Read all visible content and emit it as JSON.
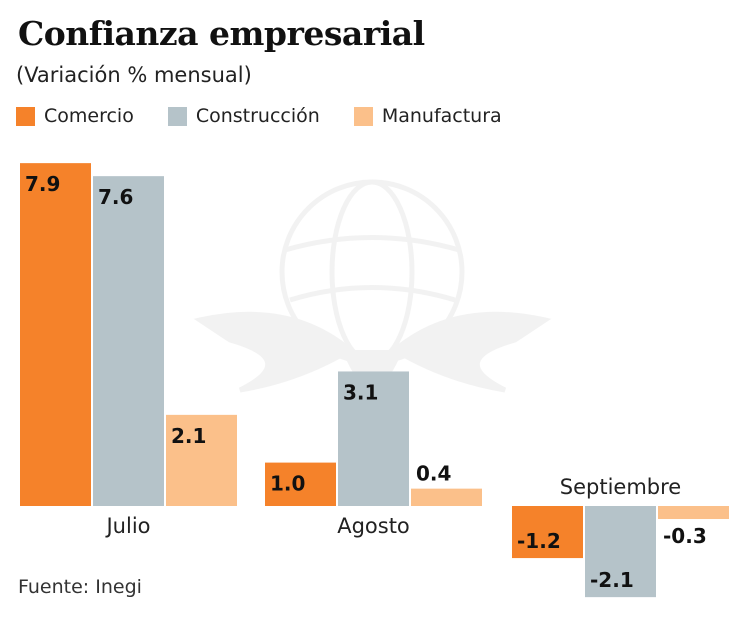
{
  "header": {
    "title": "Confianza empresarial",
    "subtitle": "(Variación % mensual)"
  },
  "footer": {
    "source": "Fuente: Inegi"
  },
  "colors": {
    "comercio": "#F5822A",
    "construccion": "#B5C3C9",
    "manufactura": "#FBC08A"
  },
  "chart_data": {
    "type": "bar",
    "title": "Confianza empresarial",
    "subtitle": "(Variación % mensual)",
    "xlabel": "",
    "ylabel": "",
    "categories": [
      "Julio",
      "Agosto",
      "Septiembre"
    ],
    "series": [
      {
        "name": "Comercio",
        "values": [
          7.9,
          1.0,
          -1.2
        ],
        "labels": [
          "7.9",
          "1.0",
          "-1.2"
        ],
        "color": "#F5822A"
      },
      {
        "name": "Construcción",
        "values": [
          7.6,
          3.1,
          -2.1
        ],
        "labels": [
          "7.6",
          "3.1",
          "-2.1"
        ],
        "color": "#B5C3C9"
      },
      {
        "name": "Manufactura",
        "values": [
          2.1,
          0.4,
          -0.3
        ],
        "labels": [
          "2.1",
          "0.4",
          "-0.3"
        ],
        "color": "#FBC08A"
      }
    ],
    "ylim": [
      -2.1,
      7.9
    ],
    "grid": false,
    "legend_position": "top-left",
    "source": "Fuente: Inegi"
  }
}
